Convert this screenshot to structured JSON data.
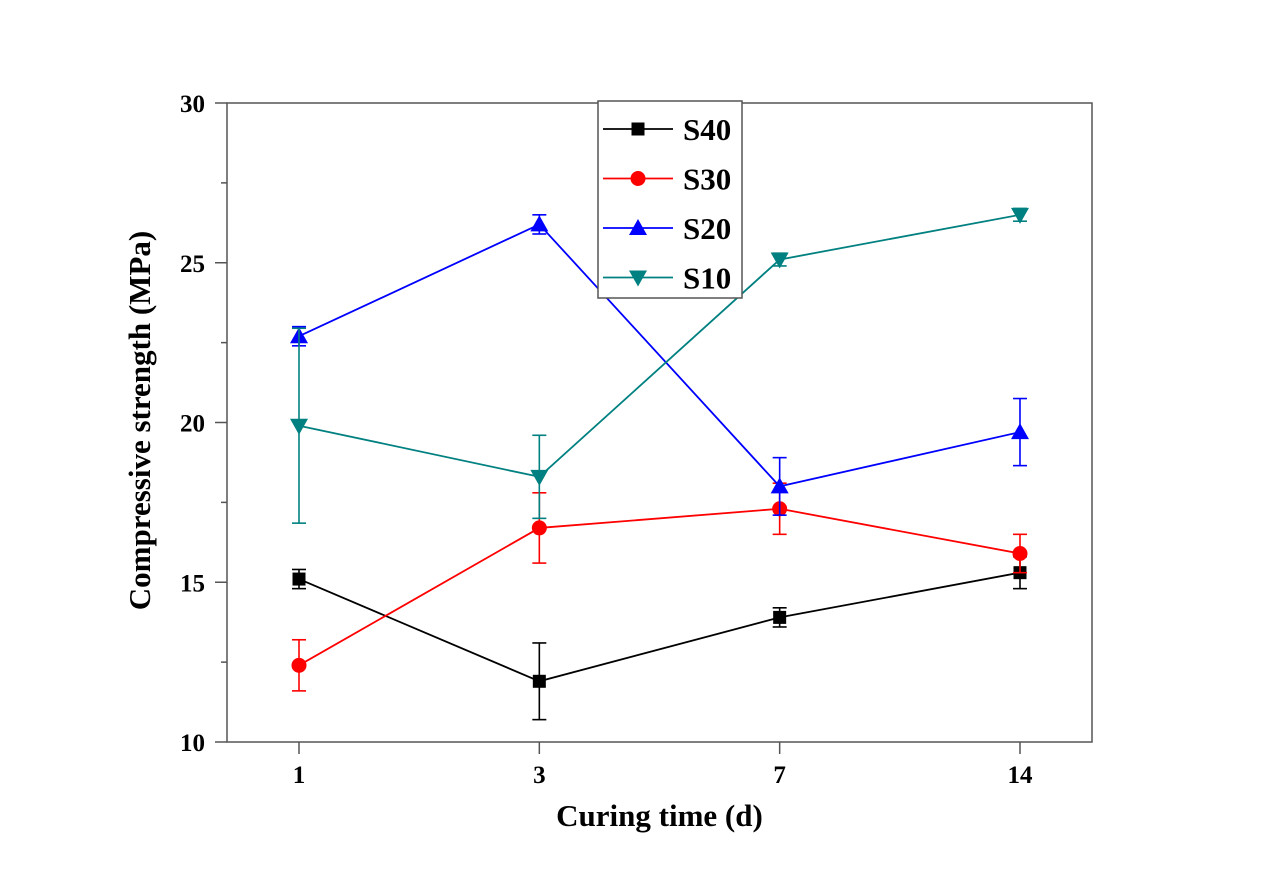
{
  "chart_data": {
    "type": "line",
    "title": "",
    "xlabel": "Curing time (d)",
    "ylabel": "Compressive strength (MPa)",
    "categories": [
      "1",
      "3",
      "7",
      "14"
    ],
    "ylim": [
      10,
      30
    ],
    "yticks": [
      10,
      15,
      20,
      25,
      30
    ],
    "yminor_step": 2.5,
    "grid": false,
    "legend_position": "top-center",
    "series": [
      {
        "name": "S40",
        "color": "#000000",
        "marker": "square",
        "values": [
          15.1,
          11.9,
          13.9,
          15.3
        ],
        "errors": [
          0.3,
          1.2,
          0.3,
          0.5
        ]
      },
      {
        "name": "S30",
        "color": "#ff0000",
        "marker": "circle",
        "values": [
          12.4,
          16.7,
          17.3,
          15.9
        ],
        "errors": [
          0.8,
          1.1,
          0.8,
          0.6
        ]
      },
      {
        "name": "S20",
        "color": "#0000ff",
        "marker": "triangle-up",
        "values": [
          22.7,
          26.2,
          18.0,
          19.7
        ],
        "errors": [
          0.3,
          0.3,
          0.9,
          1.05
        ]
      },
      {
        "name": "S10",
        "color": "#008080",
        "marker": "triangle-down",
        "values": [
          19.9,
          18.3,
          25.1,
          26.5
        ],
        "errors": [
          3.05,
          1.3,
          0.2,
          0.2
        ]
      }
    ]
  }
}
